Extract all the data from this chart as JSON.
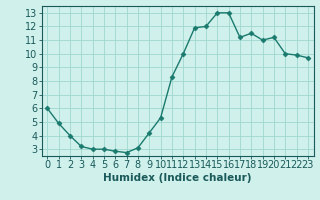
{
  "x": [
    0,
    1,
    2,
    3,
    4,
    5,
    6,
    7,
    8,
    9,
    10,
    11,
    12,
    13,
    14,
    15,
    16,
    17,
    18,
    19,
    20,
    21,
    22,
    23
  ],
  "y": [
    6.0,
    4.9,
    4.0,
    3.2,
    3.0,
    3.0,
    2.85,
    2.75,
    3.1,
    4.2,
    5.3,
    8.3,
    10.0,
    11.9,
    12.0,
    13.0,
    13.0,
    11.2,
    11.5,
    11.0,
    11.2,
    10.0,
    9.9,
    9.7
  ],
  "line_color": "#1a7a6e",
  "marker": "D",
  "marker_size": 2.5,
  "bg_color": "#cff0eb",
  "grid_color": "#9fd8d0",
  "xlabel": "Humidex (Indice chaleur)",
  "xlim": [
    -0.5,
    23.5
  ],
  "ylim": [
    2.5,
    13.5
  ],
  "yticks": [
    3,
    4,
    5,
    6,
    7,
    8,
    9,
    10,
    11,
    12,
    13
  ],
  "xtick_labels": [
    "0",
    "1",
    "2",
    "3",
    "4",
    "5",
    "6",
    "7",
    "8",
    "9",
    "10",
    "11",
    "12",
    "13",
    "14",
    "15",
    "16",
    "17",
    "18",
    "19",
    "20",
    "21",
    "22",
    "23"
  ],
  "font_color": "#1a5a5a",
  "xlabel_fontsize": 7.5,
  "tick_fontsize": 7.0,
  "linewidth": 1.0
}
